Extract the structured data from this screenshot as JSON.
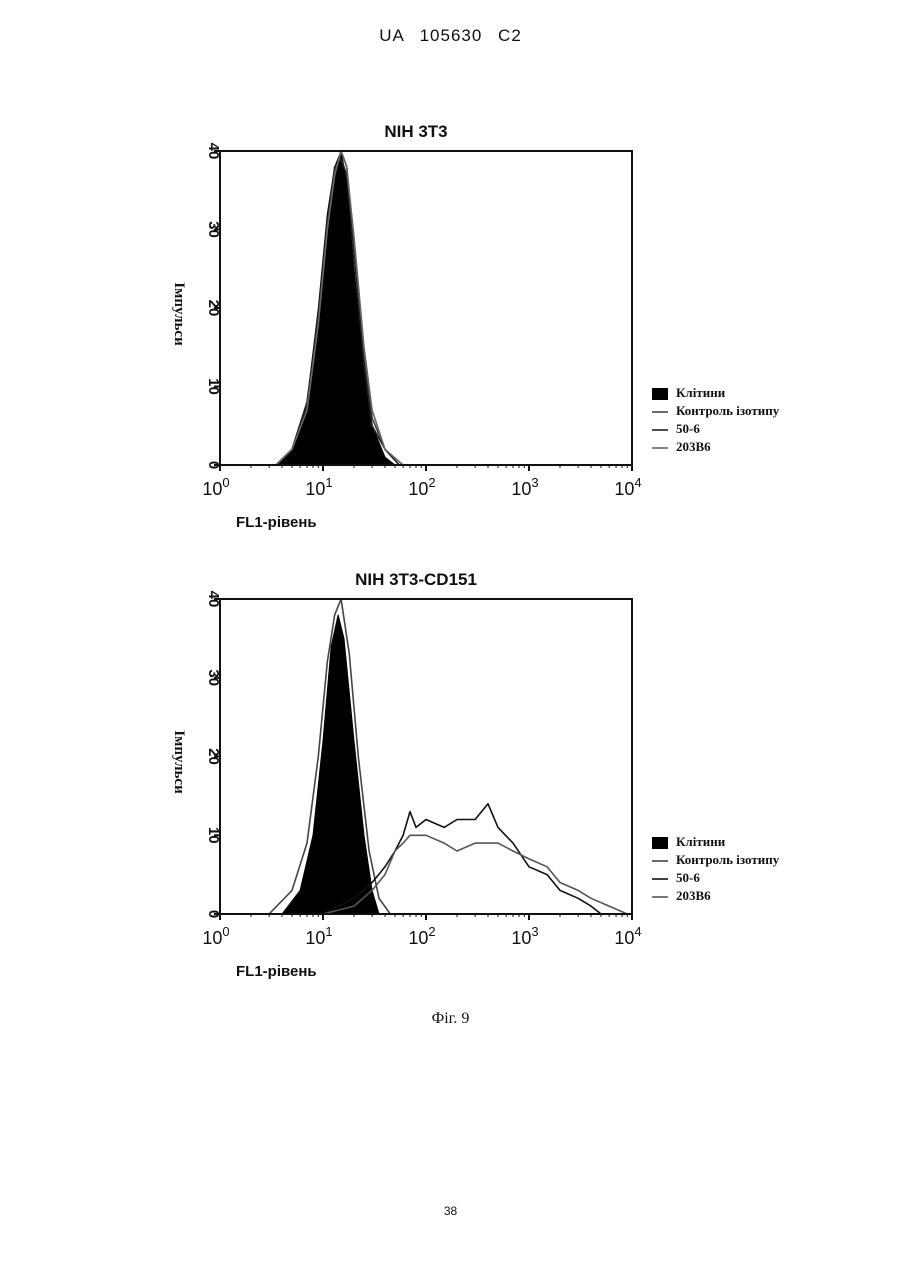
{
  "document": {
    "header": "UA 105630 C2",
    "page_number": "38",
    "figure_caption": "Фіг. 9"
  },
  "chart_data": [
    {
      "type": "line",
      "title": "NIH 3T3",
      "xlabel": "FL1-рівень",
      "ylabel": "Імпульси",
      "xscale": "log",
      "xlim": [
        1,
        10000
      ],
      "ylim": [
        0,
        40
      ],
      "yticks": [
        "0",
        "10",
        "20",
        "30",
        "40"
      ],
      "xticks": [
        {
          "base": "10",
          "exp": "0"
        },
        {
          "base": "10",
          "exp": "1"
        },
        {
          "base": "10",
          "exp": "2"
        },
        {
          "base": "10",
          "exp": "3"
        },
        {
          "base": "10",
          "exp": "4"
        }
      ],
      "grid": false,
      "legend_position": "right",
      "legend": [
        "Клітини",
        "Контроль ізотипу",
        "50-6",
        "203B6"
      ],
      "series": [
        {
          "name": "Клітини",
          "style": "filled",
          "color": "#000000",
          "x": [
            3.5,
            5,
            7,
            9,
            11,
            13,
            15,
            17,
            20,
            25,
            30,
            40,
            50
          ],
          "y": [
            0,
            2,
            8,
            20,
            32,
            38,
            40,
            36,
            25,
            12,
            5,
            1,
            0
          ]
        },
        {
          "name": "Контроль ізотипу",
          "style": "line",
          "color": "#444444",
          "x": [
            3.5,
            5,
            7,
            9,
            11,
            13,
            15,
            17,
            20,
            25,
            30,
            40,
            55
          ],
          "y": [
            0,
            2,
            7,
            18,
            30,
            37,
            40,
            38,
            28,
            14,
            6,
            2,
            0
          ]
        },
        {
          "name": "50-6",
          "style": "line",
          "color": "#222222",
          "x": [
            3.5,
            5,
            7,
            9,
            11,
            13,
            15,
            17,
            20,
            25,
            30,
            40,
            55
          ],
          "y": [
            0,
            2,
            8,
            19,
            31,
            38,
            39,
            37,
            27,
            13,
            5,
            2,
            0
          ]
        },
        {
          "name": "203B6",
          "style": "line",
          "color": "#666666",
          "x": [
            3.5,
            5,
            7,
            9,
            11,
            13,
            15,
            17,
            20,
            25,
            30,
            40,
            60
          ],
          "y": [
            0,
            2,
            7,
            18,
            30,
            37,
            40,
            38,
            29,
            15,
            7,
            2,
            0
          ]
        }
      ]
    },
    {
      "type": "line",
      "title": "NIH 3T3-CD151",
      "xlabel": "FL1-рівень",
      "ylabel": "Імпульси",
      "xscale": "log",
      "xlim": [
        1,
        10000
      ],
      "ylim": [
        0,
        40
      ],
      "yticks": [
        "0",
        "10",
        "20",
        "30",
        "40"
      ],
      "xticks": [
        {
          "base": "10",
          "exp": "0"
        },
        {
          "base": "10",
          "exp": "1"
        },
        {
          "base": "10",
          "exp": "2"
        },
        {
          "base": "10",
          "exp": "3"
        },
        {
          "base": "10",
          "exp": "4"
        }
      ],
      "grid": false,
      "legend_position": "right",
      "legend": [
        "Клітини",
        "Контроль ізотипу",
        "50-6",
        "203B6"
      ],
      "series": [
        {
          "name": "Клітини",
          "style": "filled",
          "color": "#000000",
          "x": [
            4,
            6,
            8,
            10,
            12,
            14,
            16,
            20,
            25,
            30,
            35
          ],
          "y": [
            0,
            3,
            10,
            22,
            34,
            38,
            35,
            22,
            10,
            3,
            0
          ]
        },
        {
          "name": "Контроль ізотипу",
          "style": "line",
          "color": "#444444",
          "x": [
            3,
            5,
            7,
            9,
            11,
            13,
            15,
            18,
            22,
            28,
            35,
            45
          ],
          "y": [
            0,
            3,
            9,
            20,
            32,
            38,
            40,
            33,
            20,
            8,
            2,
            0
          ]
        },
        {
          "name": "50-6",
          "style": "line",
          "color": "#111111",
          "x": [
            10,
            20,
            30,
            40,
            50,
            60,
            70,
            80,
            100,
            150,
            200,
            300,
            400,
            500,
            700,
            1000,
            1500,
            2000,
            3000,
            4000,
            5000
          ],
          "y": [
            0,
            2,
            4,
            6,
            8,
            10,
            13,
            11,
            12,
            11,
            12,
            12,
            14,
            11,
            9,
            6,
            5,
            3,
            2,
            1,
            0
          ]
        },
        {
          "name": "203B6",
          "style": "line",
          "color": "#555555",
          "x": [
            10,
            20,
            30,
            40,
            50,
            60,
            70,
            80,
            100,
            150,
            200,
            300,
            400,
            500,
            700,
            1000,
            1500,
            2000,
            3000,
            4000,
            6000,
            9000
          ],
          "y": [
            0,
            1,
            3,
            5,
            8,
            9,
            10,
            10,
            10,
            9,
            8,
            9,
            9,
            9,
            8,
            7,
            6,
            4,
            3,
            2,
            1,
            0
          ]
        }
      ]
    }
  ]
}
